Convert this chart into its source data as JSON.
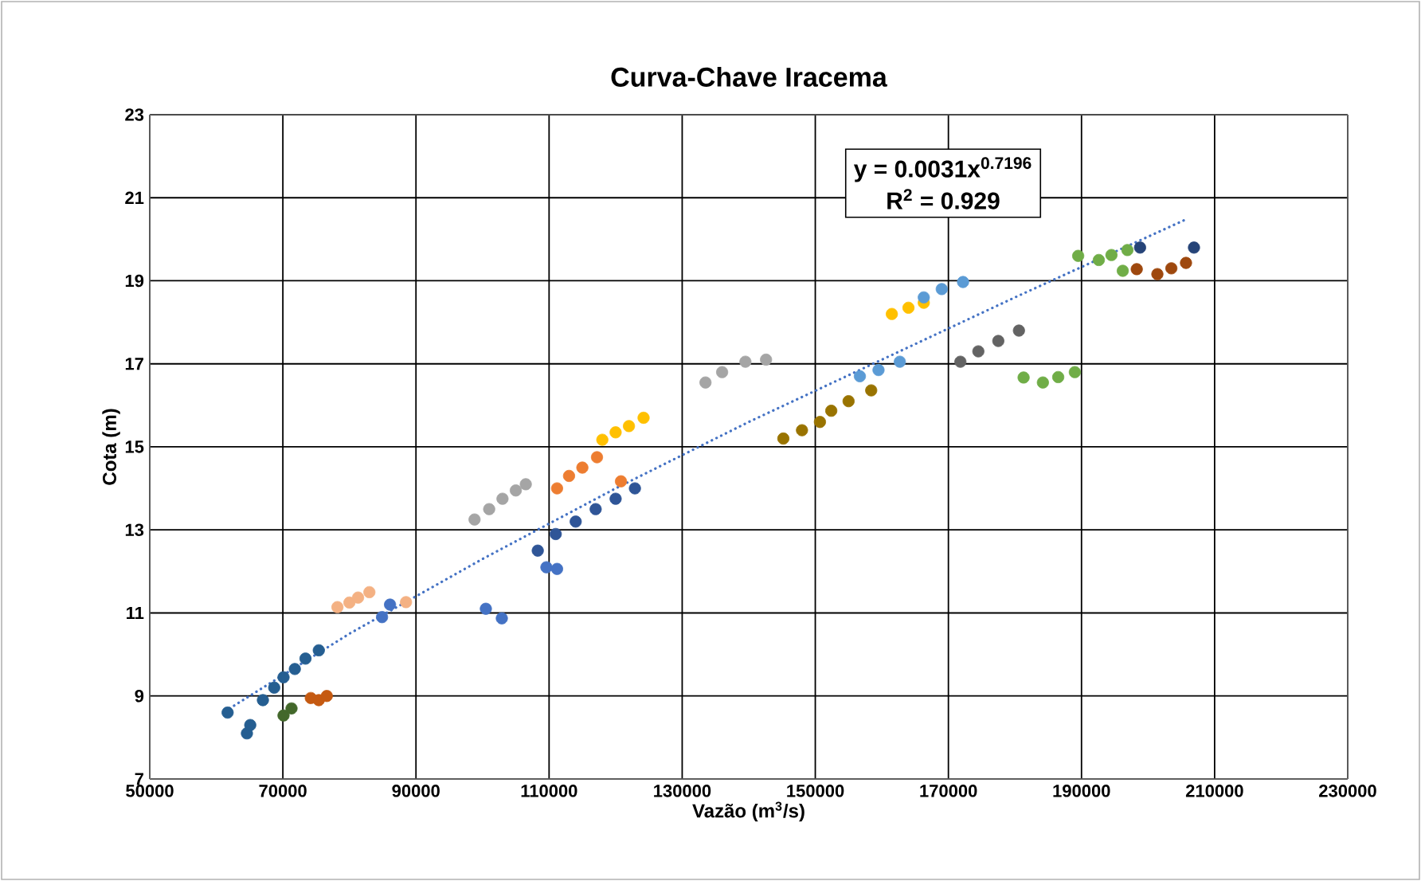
{
  "chart_data": {
    "type": "scatter",
    "title": "Curva-Chave  Iracema",
    "xlabel": "Vazão (m$^{3}$/s)",
    "ylabel": "Cota (m)",
    "xlim": [
      50000,
      230000
    ],
    "xticks": [
      50000,
      70000,
      90000,
      110000,
      130000,
      150000,
      170000,
      190000,
      210000,
      230000
    ],
    "ylim": [
      7,
      23
    ],
    "yticks": [
      7,
      9,
      11,
      13,
      15,
      17,
      19,
      21,
      23
    ],
    "grid": true,
    "marker": "circle",
    "annotations": [
      "y = 0.0031x$^{0.7196}$",
      "R$^{2}$ = 0.929"
    ],
    "series": [
      {
        "color": "#255e91",
        "x": [
          61700,
          64600,
          65100,
          67000,
          68700,
          70100,
          71800,
          73400,
          75400
        ],
        "values": [
          8.6,
          8.1,
          8.3,
          8.9,
          9.2,
          9.45,
          9.65,
          9.9,
          10.1
        ]
      },
      {
        "color": "#43682b",
        "x": [
          70100,
          71300
        ],
        "values": [
          8.53,
          8.7
        ]
      },
      {
        "color": "#c55a11",
        "x": [
          74200,
          75400,
          76600
        ],
        "values": [
          8.95,
          8.9,
          9.0
        ]
      },
      {
        "color": "#f4b183",
        "x": [
          78200,
          80000,
          81300,
          83000,
          88500
        ],
        "values": [
          11.14,
          11.25,
          11.37,
          11.5,
          11.26
        ]
      },
      {
        "color": "#4472c4",
        "x": [
          84900,
          86100,
          100500,
          102900,
          109600,
          111200
        ],
        "values": [
          10.9,
          11.2,
          11.1,
          10.87,
          12.1,
          12.06
        ]
      },
      {
        "color": "#a5a5a5",
        "x": [
          98800,
          101000,
          103000,
          105000,
          106500
        ],
        "values": [
          13.25,
          13.5,
          13.75,
          13.95,
          14.1
        ]
      },
      {
        "color": "#2f5597",
        "x": [
          108300,
          111000,
          114000,
          117000,
          120000,
          122900
        ],
        "values": [
          12.5,
          12.9,
          13.2,
          13.5,
          13.75,
          14.0
        ]
      },
      {
        "color": "#ed7d31",
        "x": [
          111200,
          113000,
          115000,
          117200,
          120800
        ],
        "values": [
          14.0,
          14.3,
          14.5,
          14.75,
          14.17
        ]
      },
      {
        "color": "#ffc000",
        "x": [
          118000,
          120000,
          122000,
          124200,
          161500,
          164000,
          166300
        ],
        "values": [
          15.17,
          15.35,
          15.5,
          15.7,
          18.2,
          18.35,
          18.47
        ]
      },
      {
        "color": "#a5a5a5",
        "x": [
          133500,
          136000,
          139500,
          142600
        ],
        "values": [
          16.55,
          16.8,
          17.05,
          17.1
        ]
      },
      {
        "color": "#997300",
        "x": [
          145200,
          148000,
          150700,
          152400,
          155000,
          158400
        ],
        "values": [
          15.2,
          15.4,
          15.6,
          15.87,
          16.1,
          16.36
        ]
      },
      {
        "color": "#5b9bd5",
        "x": [
          156700,
          159500,
          162700,
          166300,
          169000,
          172200
        ],
        "values": [
          16.7,
          16.85,
          17.05,
          18.6,
          18.8,
          18.97
        ]
      },
      {
        "color": "#636363",
        "x": [
          171800,
          174500,
          177500,
          180600
        ],
        "values": [
          17.05,
          17.3,
          17.55,
          17.8
        ]
      },
      {
        "color": "#70ad47",
        "x": [
          181300,
          184200,
          186500,
          189000,
          189500,
          192600,
          194500,
          196900,
          196200
        ],
        "values": [
          16.67,
          16.55,
          16.68,
          16.8,
          19.6,
          19.5,
          19.62,
          19.74,
          19.24
        ]
      },
      {
        "color": "#9e480e",
        "x": [
          198300,
          201400,
          203500,
          205700
        ],
        "values": [
          19.28,
          19.16,
          19.3,
          19.43
        ]
      },
      {
        "color": "#264478",
        "x": [
          198800,
          206900
        ],
        "values": [
          19.8,
          19.8
        ]
      },
      {
        "type": "line",
        "line_style": "dotted",
        "marker": "none",
        "color": "#4472c4",
        "x": [
          62000,
          80000,
          100000,
          120000,
          140000,
          160000,
          180000,
          206000
        ],
        "values": [
          8.7,
          10.5,
          12.3,
          14.0,
          15.6,
          17.1,
          18.6,
          20.5
        ]
      }
    ]
  }
}
